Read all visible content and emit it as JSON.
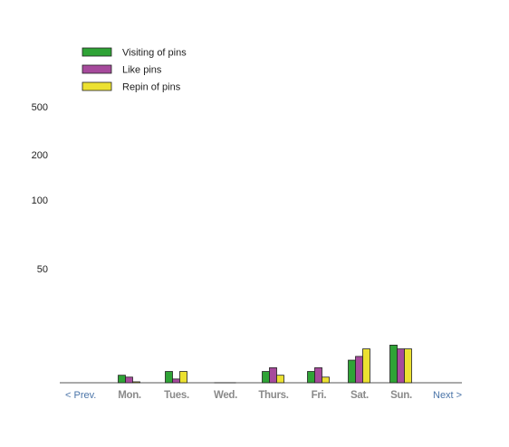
{
  "chart_data": {
    "type": "bar",
    "title": "",
    "xlabel": "",
    "ylabel": "",
    "categories": [
      "Mon.",
      "Tues.",
      "Wed.",
      "Thurs.",
      "Fri.",
      "Sat.",
      "Sun."
    ],
    "y_ticks": [
      {
        "label": "50",
        "value": 50
      },
      {
        "label": "100",
        "value": 100
      },
      {
        "label": "200",
        "value": 200
      },
      {
        "label": "500",
        "value": 500
      }
    ],
    "y_scale": "non-linear (ticks 50, 100, 200, 500)",
    "ylim": [
      0,
      500
    ],
    "grid": false,
    "legend_position": "top-left",
    "series": [
      {
        "name": "Visiting of pins",
        "color": "#2fa336",
        "values": [
          8,
          12,
          0,
          12,
          12,
          24,
          40
        ]
      },
      {
        "name": "Like pins",
        "color": "#a64a9c",
        "values": [
          6,
          4,
          0,
          16,
          16,
          28,
          36
        ]
      },
      {
        "name": "Repin of pins",
        "color": "#ece131",
        "values": [
          1,
          12,
          0,
          8,
          6,
          36,
          36
        ]
      }
    ]
  },
  "nav": {
    "prev_label": "<  Prev.",
    "next_label": "Next >"
  }
}
